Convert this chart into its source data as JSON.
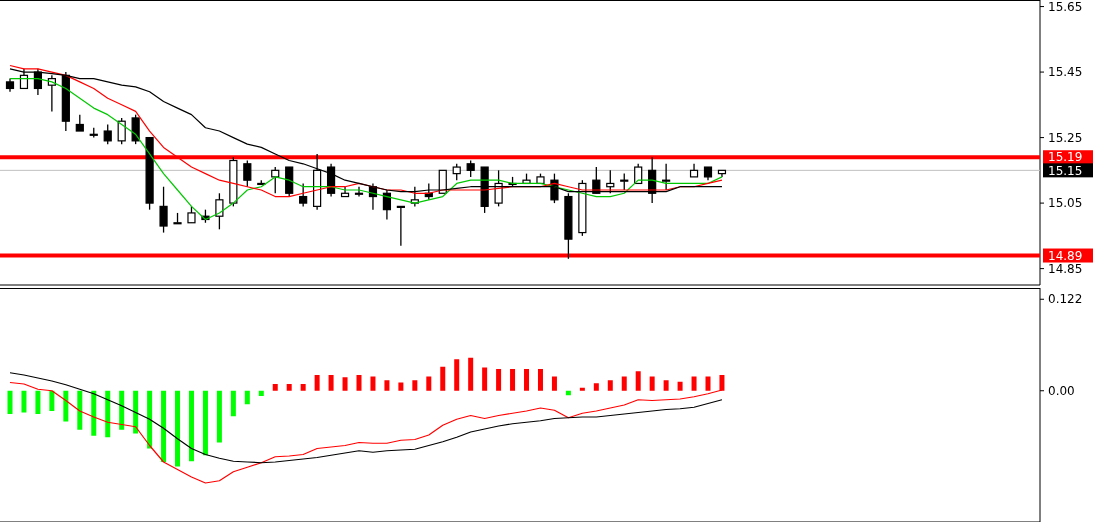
{
  "chart_data": [
    {
      "type": "candlestick",
      "categories": [
        null,
        null,
        null,
        null,
        null,
        null,
        null,
        null,
        null,
        null,
        null,
        null,
        null,
        null,
        null,
        null,
        null,
        null,
        null,
        null,
        null,
        null,
        null,
        null,
        null,
        null,
        null,
        null,
        null,
        null,
        null,
        null,
        null,
        null,
        null,
        null,
        null,
        null,
        null,
        null,
        null,
        null,
        null,
        null,
        null,
        null,
        null,
        null,
        null,
        null,
        null,
        null
      ],
      "ohlc": [
        [
          15.42,
          15.43,
          15.39,
          15.4
        ],
        [
          15.4,
          15.46,
          15.4,
          15.44
        ],
        [
          15.45,
          15.46,
          15.38,
          15.4
        ],
        [
          15.41,
          15.44,
          15.33,
          15.43
        ],
        [
          15.44,
          15.45,
          15.27,
          15.3
        ],
        [
          15.29,
          15.32,
          15.27,
          15.27
        ],
        [
          15.26,
          15.28,
          15.25,
          15.26
        ],
        [
          15.27,
          15.29,
          15.23,
          15.24
        ],
        [
          15.24,
          15.31,
          15.23,
          15.3
        ],
        [
          15.31,
          15.32,
          15.23,
          15.24
        ],
        [
          15.25,
          15.25,
          15.03,
          15.05
        ],
        [
          15.04,
          15.1,
          14.96,
          14.98
        ],
        [
          14.99,
          15.02,
          14.99,
          14.99
        ],
        [
          14.99,
          15.04,
          14.99,
          15.02
        ],
        [
          15.01,
          15.03,
          14.99,
          15.0
        ],
        [
          15.01,
          15.08,
          14.97,
          15.06
        ],
        [
          15.05,
          15.19,
          15.04,
          15.18
        ],
        [
          15.17,
          15.18,
          15.1,
          15.12
        ],
        [
          15.11,
          15.12,
          15.11,
          15.11
        ],
        [
          15.13,
          15.16,
          15.08,
          15.15
        ],
        [
          15.16,
          15.16,
          15.07,
          15.08
        ],
        [
          15.07,
          15.11,
          15.04,
          15.05
        ],
        [
          15.04,
          15.2,
          15.03,
          15.15
        ],
        [
          15.16,
          15.17,
          15.07,
          15.08
        ],
        [
          15.07,
          15.1,
          15.07,
          15.08
        ],
        [
          15.08,
          15.1,
          15.07,
          15.08
        ],
        [
          15.1,
          15.11,
          15.03,
          15.07
        ],
        [
          15.08,
          15.09,
          15.0,
          15.03
        ],
        [
          15.04,
          15.04,
          14.92,
          15.04
        ],
        [
          15.05,
          15.1,
          15.04,
          15.06
        ],
        [
          15.08,
          15.11,
          15.06,
          15.07
        ],
        [
          15.08,
          15.15,
          15.08,
          15.15
        ],
        [
          15.14,
          15.17,
          15.12,
          15.16
        ],
        [
          15.17,
          15.18,
          15.13,
          15.15
        ],
        [
          15.16,
          15.16,
          15.02,
          15.04
        ],
        [
          15.05,
          15.15,
          15.04,
          15.11
        ],
        [
          15.11,
          15.13,
          15.1,
          15.11
        ],
        [
          15.11,
          15.14,
          15.11,
          15.12
        ],
        [
          15.11,
          15.14,
          15.11,
          15.13
        ],
        [
          15.12,
          15.14,
          15.05,
          15.06
        ],
        [
          15.07,
          15.08,
          14.88,
          14.94
        ],
        [
          14.96,
          15.12,
          14.95,
          15.11
        ],
        [
          15.12,
          15.16,
          15.08,
          15.08
        ],
        [
          15.1,
          15.15,
          15.08,
          15.11
        ],
        [
          15.12,
          15.14,
          15.09,
          15.12
        ],
        [
          15.11,
          15.17,
          15.11,
          15.16
        ],
        [
          15.15,
          15.19,
          15.05,
          15.08
        ],
        [
          15.12,
          15.17,
          15.09,
          15.12
        ],
        null,
        [
          15.13,
          15.17,
          15.13,
          15.15
        ],
        [
          15.16,
          15.16,
          15.12,
          15.13
        ],
        [
          15.14,
          15.15,
          15.13,
          15.15
        ]
      ],
      "series": [
        {
          "type": "line",
          "color": "#000000",
          "values": [
            15.46,
            15.45,
            15.45,
            15.445,
            15.44,
            15.43,
            15.43,
            15.42,
            15.41,
            15.405,
            15.39,
            15.36,
            15.34,
            15.32,
            15.28,
            15.27,
            15.25,
            15.23,
            15.22,
            15.2,
            15.18,
            15.17,
            15.155,
            15.14,
            15.12,
            15.11,
            15.1,
            15.09,
            15.085,
            15.085,
            15.09,
            15.09,
            15.095,
            15.1,
            15.1,
            15.1,
            15.1,
            15.1,
            15.1,
            15.1,
            15.085,
            15.085,
            15.085,
            15.085,
            15.085,
            15.085,
            15.085,
            15.085,
            15.1,
            15.1,
            15.1,
            15.1
          ]
        },
        {
          "type": "line",
          "color": "#ff0000",
          "values": [
            15.47,
            15.46,
            15.46,
            15.45,
            15.44,
            15.42,
            15.4,
            15.37,
            15.35,
            15.33,
            15.27,
            15.22,
            15.19,
            15.16,
            15.14,
            15.12,
            15.11,
            15.1,
            15.09,
            15.07,
            15.07,
            15.08,
            15.09,
            15.1,
            15.1,
            15.11,
            15.1,
            15.09,
            15.09,
            15.08,
            15.08,
            15.09,
            15.09,
            15.09,
            15.09,
            15.095,
            15.1,
            15.1,
            15.1,
            15.11,
            15.1,
            15.09,
            15.09,
            15.09,
            15.09,
            15.09,
            15.09,
            15.09,
            15.1,
            15.1,
            15.11,
            15.12
          ]
        },
        {
          "type": "line",
          "color": "#00c800",
          "values": [
            15.43,
            15.43,
            15.43,
            15.42,
            15.4,
            15.37,
            15.34,
            15.32,
            15.29,
            15.26,
            15.2,
            15.14,
            15.09,
            15.04,
            15.0,
            15.02,
            15.05,
            15.09,
            15.1,
            15.13,
            15.12,
            15.1,
            15.1,
            15.1,
            15.09,
            15.09,
            15.08,
            15.07,
            15.06,
            15.05,
            15.06,
            15.07,
            15.11,
            15.12,
            15.12,
            15.12,
            15.11,
            15.11,
            15.11,
            15.1,
            15.09,
            15.08,
            15.07,
            15.07,
            15.08,
            15.12,
            15.12,
            15.11,
            15.11,
            15.11,
            15.11,
            15.13
          ]
        }
      ],
      "ylim": [
        14.8,
        15.67
      ],
      "yticks": [
        14.85,
        15.05,
        15.25,
        15.45,
        15.65
      ],
      "ref_lines": [
        {
          "axis": "y",
          "value": 15.19,
          "label": "15.19",
          "color": "#ff0000"
        },
        {
          "axis": "y",
          "value": 15.15,
          "label": "15.15",
          "color": "#c0c0c0"
        },
        {
          "axis": "y",
          "value": 14.89,
          "label": "14.89",
          "color": "#ff0000"
        }
      ]
    },
    {
      "type": "bar",
      "categories": [
        null,
        null,
        null,
        null,
        null,
        null,
        null,
        null,
        null,
        null,
        null,
        null,
        null,
        null,
        null,
        null,
        null,
        null,
        null,
        null,
        null,
        null,
        null,
        null,
        null,
        null,
        null,
        null,
        null,
        null,
        null,
        null,
        null,
        null,
        null,
        null,
        null,
        null,
        null,
        null,
        null,
        null,
        null,
        null,
        null,
        null,
        null,
        null,
        null,
        null,
        null,
        null
      ],
      "series": [
        {
          "type": "bar",
          "values": [
            -0.031,
            -0.029,
            -0.031,
            -0.027,
            -0.041,
            -0.052,
            -0.06,
            -0.062,
            -0.052,
            -0.057,
            -0.077,
            -0.095,
            -0.101,
            -0.094,
            -0.086,
            -0.069,
            -0.034,
            -0.018,
            -0.007,
            0.009,
            0.009,
            0.009,
            0.021,
            0.021,
            0.018,
            0.021,
            0.019,
            0.014,
            0.011,
            0.014,
            0.019,
            0.032,
            0.042,
            0.044,
            0.031,
            0.029,
            0.029,
            0.029,
            0.029,
            0.019,
            -0.006,
            0.004,
            0.01,
            0.014,
            0.019,
            0.026,
            0.019,
            0.014,
            0.012,
            0.019,
            0.019,
            0.021
          ],
          "colors": [
            "#00ff00",
            "#00ff00",
            "#00ff00",
            "#00ff00",
            "#00ff00",
            "#00ff00",
            "#00ff00",
            "#00ff00",
            "#00ff00",
            "#00ff00",
            "#00ff00",
            "#00ff00",
            "#00ff00",
            "#00ff00",
            "#00ff00",
            "#00ff00",
            "#00ff00",
            "#00ff00",
            "#00ff00",
            "#ff0000",
            "#ff0000",
            "#ff0000",
            "#ff0000",
            "#ff0000",
            "#ff0000",
            "#ff0000",
            "#ff0000",
            "#ff0000",
            "#ff0000",
            "#ff0000",
            "#ff0000",
            "#ff0000",
            "#ff0000",
            "#ff0000",
            "#ff0000",
            "#ff0000",
            "#ff0000",
            "#ff0000",
            "#ff0000",
            "#ff0000",
            "#00ff00",
            "#ff0000",
            "#ff0000",
            "#ff0000",
            "#ff0000",
            "#ff0000",
            "#ff0000",
            "#ff0000",
            "#ff0000",
            "#ff0000",
            "#ff0000",
            "#ff0000"
          ]
        },
        {
          "type": "line",
          "color": "#000000",
          "values": [
            0.024,
            0.021,
            0.017,
            0.013,
            0.008,
            0.002,
            -0.004,
            -0.012,
            -0.02,
            -0.029,
            -0.038,
            -0.05,
            -0.064,
            -0.077,
            -0.085,
            -0.09,
            -0.094,
            -0.095,
            -0.096,
            -0.095,
            -0.093,
            -0.091,
            -0.089,
            -0.086,
            -0.083,
            -0.08,
            -0.082,
            -0.08,
            -0.079,
            -0.078,
            -0.073,
            -0.068,
            -0.062,
            -0.055,
            -0.051,
            -0.047,
            -0.044,
            -0.042,
            -0.04,
            -0.037,
            -0.036,
            -0.035,
            -0.035,
            -0.033,
            -0.031,
            -0.029,
            -0.027,
            -0.025,
            -0.024,
            -0.022,
            -0.017,
            -0.012
          ]
        },
        {
          "type": "line",
          "color": "#ff0000",
          "values": [
            0.011,
            0.009,
            0.002,
            0.0,
            -0.013,
            -0.027,
            -0.035,
            -0.042,
            -0.045,
            -0.048,
            -0.073,
            -0.095,
            -0.105,
            -0.115,
            -0.123,
            -0.12,
            -0.108,
            -0.102,
            -0.096,
            -0.088,
            -0.087,
            -0.085,
            -0.077,
            -0.075,
            -0.073,
            -0.069,
            -0.07,
            -0.07,
            -0.066,
            -0.065,
            -0.059,
            -0.046,
            -0.038,
            -0.033,
            -0.037,
            -0.033,
            -0.03,
            -0.027,
            -0.023,
            -0.026,
            -0.036,
            -0.03,
            -0.027,
            -0.023,
            -0.019,
            -0.012,
            -0.013,
            -0.012,
            -0.011,
            -0.008,
            -0.004,
            0.001
          ]
        }
      ],
      "ylim": [
        -0.175,
        0.137
      ],
      "yticks": [
        0.122,
        {
          "value": 0,
          "label": "0.00"
        }
      ]
    }
  ]
}
